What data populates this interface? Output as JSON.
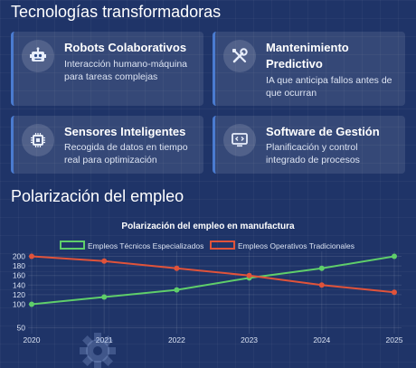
{
  "sections": {
    "tech_title": "Tecnologías transformadoras",
    "polarization_title": "Polarización del empleo"
  },
  "cards": [
    {
      "icon": "robot-icon",
      "title": "Robots Colaborativos",
      "desc": "Interacción humano-máquina para tareas complejas"
    },
    {
      "icon": "tools-icon",
      "title": "Mantenimiento Predictivo",
      "desc": "IA que anticipa fallos antes de que ocurran"
    },
    {
      "icon": "chip-icon",
      "title": "Sensores Inteligentes",
      "desc": "Recogida de datos en tiempo real para optimización"
    },
    {
      "icon": "code-monitor-icon",
      "title": "Software de Gestión",
      "desc": "Planificación y control integrado de procesos"
    }
  ],
  "colors": {
    "background": "#1f3468",
    "card_accent": "#4a7bd0",
    "series_green": "#5fce6a",
    "series_red": "#e0533a"
  },
  "chart_data": {
    "type": "line",
    "title": "Polarización del empleo en manufactura",
    "x": [
      "2020",
      "2021",
      "2022",
      "2023",
      "2024",
      "2025"
    ],
    "series": [
      {
        "name": "Empleos Técnicos Especializados",
        "color": "#5fce6a",
        "values": [
          100,
          115,
          130,
          155,
          175,
          200
        ]
      },
      {
        "name": "Empleos Operativos Tradicionales",
        "color": "#e0533a",
        "values": [
          200,
          190,
          175,
          160,
          140,
          125
        ]
      }
    ],
    "yticks": [
      50,
      100,
      120,
      140,
      160,
      180,
      200
    ],
    "legend_position": "top-center",
    "grid": true
  }
}
